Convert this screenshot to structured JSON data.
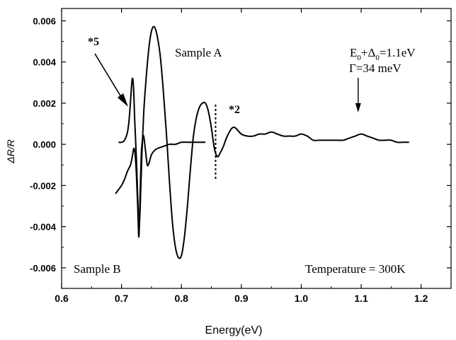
{
  "chart_data": {
    "type": "line",
    "xlabel": "Energy(eV)",
    "ylabel": "ΔR/R",
    "xlim": [
      0.6,
      1.25
    ],
    "ylim": [
      -0.007,
      0.0066
    ],
    "x_ticks": [
      0.6,
      0.7,
      0.8,
      0.9,
      1.0,
      1.1,
      1.2
    ],
    "x_tick_labels": [
      "0.6",
      "0.7",
      "0.8",
      "0.9",
      "1.0",
      "1.1",
      "1.2"
    ],
    "y_ticks": [
      -0.006,
      -0.004,
      -0.002,
      0.0,
      0.002,
      0.004,
      0.006
    ],
    "y_tick_labels": [
      "-0.006",
      "-0.004",
      "-0.002",
      "0.000",
      "0.002",
      "0.004",
      "0.006"
    ],
    "grid": false,
    "series": [
      {
        "name": "Sample A",
        "color": "#000000",
        "x": [
          0.695,
          0.7,
          0.705,
          0.71,
          0.713,
          0.716,
          0.718,
          0.72,
          0.722,
          0.725,
          0.727,
          0.729,
          0.731,
          0.734,
          0.737,
          0.74,
          0.745,
          0.75,
          0.755,
          0.76,
          0.765,
          0.77,
          0.775,
          0.78,
          0.785,
          0.79,
          0.795,
          0.8,
          0.805,
          0.81,
          0.815,
          0.82,
          0.825,
          0.83,
          0.835,
          0.84,
          0.845,
          0.85,
          0.855,
          0.86,
          0.865,
          0.87,
          0.875,
          0.88,
          0.885,
          0.89,
          0.9,
          0.91,
          0.92,
          0.93,
          0.94,
          0.95,
          0.96,
          0.97,
          0.98,
          0.99,
          1.0,
          1.01,
          1.02,
          1.03,
          1.04,
          1.05,
          1.06,
          1.07,
          1.08,
          1.09,
          1.1,
          1.11,
          1.12,
          1.13,
          1.14,
          1.15,
          1.16,
          1.17,
          1.18
        ],
        "y": [
          0.0001,
          0.0001,
          0.0002,
          0.0006,
          0.0013,
          0.0025,
          0.0032,
          0.0028,
          0.0012,
          -0.0008,
          -0.0025,
          -0.004,
          -0.0032,
          -0.0005,
          0.0015,
          0.0028,
          0.0045,
          0.0055,
          0.0057,
          0.0052,
          0.0042,
          0.0025,
          0.0005,
          -0.0018,
          -0.0038,
          -0.005,
          -0.0055,
          -0.0054,
          -0.0045,
          -0.003,
          -0.0012,
          0.0004,
          0.0013,
          0.0018,
          0.002,
          0.002,
          0.0016,
          0.0008,
          -0.0002,
          -0.0006,
          -0.0004,
          -0.0001,
          0.0003,
          0.0006,
          0.0008,
          0.0008,
          0.0005,
          0.0004,
          0.0004,
          0.0005,
          0.0005,
          0.0006,
          0.0005,
          0.0004,
          0.0004,
          0.0004,
          0.0005,
          0.0004,
          0.0002,
          0.0002,
          0.0002,
          0.0002,
          0.0002,
          0.0002,
          0.0003,
          0.0004,
          0.0005,
          0.0004,
          0.0003,
          0.0002,
          0.0002,
          0.0002,
          0.0001,
          0.0001,
          0.0001
        ]
      },
      {
        "name": "Sample B",
        "color": "#000000",
        "x": [
          0.69,
          0.695,
          0.7,
          0.705,
          0.71,
          0.715,
          0.718,
          0.721,
          0.724,
          0.727,
          0.729,
          0.731,
          0.733,
          0.735,
          0.737,
          0.74,
          0.743,
          0.746,
          0.75,
          0.755,
          0.76,
          0.77,
          0.78,
          0.79,
          0.8,
          0.81,
          0.82,
          0.83,
          0.84
        ],
        "y": [
          -0.0024,
          -0.0022,
          -0.002,
          -0.0017,
          -0.0013,
          -0.001,
          -0.0006,
          -0.0002,
          -0.001,
          -0.003,
          -0.0045,
          -0.0025,
          -0.0005,
          0.0002,
          0.0004,
          -0.0003,
          -0.001,
          -0.0009,
          -0.0005,
          -0.0003,
          -0.0002,
          -0.0001,
          0.0,
          0.0,
          0.0001,
          0.0001,
          0.0001,
          0.0001,
          0.0001
        ]
      }
    ],
    "annotations": {
      "sample_a": "Sample A",
      "sample_b": "Sample B",
      "mult_5": "*5",
      "mult_2": "*2",
      "e0_main": "E",
      "e0_sub1": "0",
      "e0_plus": "+Δ",
      "e0_sub2": "0",
      "e0_value": "=1.1eV",
      "gamma": "Γ=34 meV",
      "temperature": "Temperature = 300K",
      "dotted_line_x": 0.857,
      "arrow_e0_x": 1.095
    }
  }
}
